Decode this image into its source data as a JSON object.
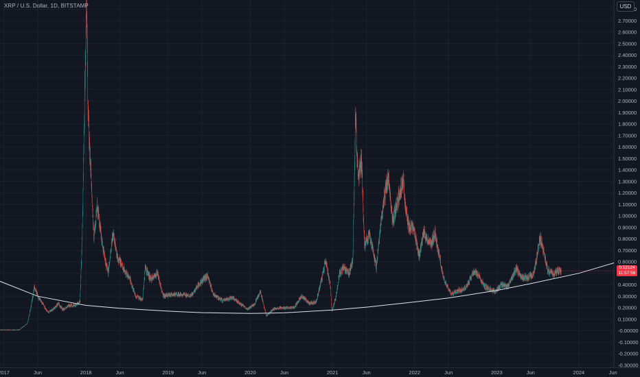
{
  "header": {
    "title": "XRP / U.S. Dollar, 1D, BITSTAMP",
    "currency": "USD"
  },
  "last_price": {
    "value": "0.52124",
    "countdown": "11:57:56"
  },
  "colors": {
    "background": "#131722",
    "up": "#26a69a",
    "down": "#ef5350",
    "trendline": "#e0e3eb",
    "last_price_badge": "#f23645"
  },
  "chart_data": {
    "type": "candlestick",
    "title": "XRP / U.S. Dollar, 1D, BITSTAMP",
    "y_axis": {
      "scale": "linear",
      "range": [
        -0.32,
        2.88
      ],
      "ticks": [
        "2.80000",
        "2.70000",
        "2.60000",
        "2.50000",
        "2.40000",
        "2.30000",
        "2.20000",
        "2.10000",
        "2.00000",
        "1.90000",
        "1.80000",
        "1.70000",
        "1.60000",
        "1.50000",
        "1.40000",
        "1.30000",
        "1.20000",
        "1.10000",
        "1.00000",
        "0.90000",
        "0.80000",
        "0.70000",
        "0.60000",
        "0.50000",
        "0.40000",
        "0.30000",
        "0.20000",
        "0.10000",
        "-0.00000",
        "-0.10000",
        "-0.20000",
        "-0.30000"
      ],
      "position": "right"
    },
    "x_axis": {
      "range": [
        "2016-12-15",
        "2024-06-05"
      ],
      "ticks": [
        {
          "label": "2017",
          "date": "2017-01-01"
        },
        {
          "label": "Jun",
          "date": "2017-06-01"
        },
        {
          "label": "2018",
          "date": "2018-01-01"
        },
        {
          "label": "Jun",
          "date": "2018-06-01"
        },
        {
          "label": "2019",
          "date": "2019-01-01"
        },
        {
          "label": "Jun",
          "date": "2019-06-01"
        },
        {
          "label": "2020",
          "date": "2020-01-01"
        },
        {
          "label": "Jun",
          "date": "2020-06-01"
        },
        {
          "label": "2021",
          "date": "2021-01-01"
        },
        {
          "label": "Jun",
          "date": "2021-06-01"
        },
        {
          "label": "2022",
          "date": "2022-01-01"
        },
        {
          "label": "Jun",
          "date": "2022-06-01"
        },
        {
          "label": "2023",
          "date": "2023-01-01"
        },
        {
          "label": "Jun",
          "date": "2023-06-01"
        },
        {
          "label": "2024",
          "date": "2024-01-01"
        },
        {
          "label": "Jun",
          "date": "2024-06-01"
        }
      ]
    },
    "grid": true,
    "price_path": [
      [
        "2016-12-15",
        0.006
      ],
      [
        "2017-03-10",
        0.007
      ],
      [
        "2017-03-25",
        0.03
      ],
      [
        "2017-04-15",
        0.06
      ],
      [
        "2017-05-01",
        0.2
      ],
      [
        "2017-05-17",
        0.38
      ],
      [
        "2017-06-05",
        0.28
      ],
      [
        "2017-06-25",
        0.23
      ],
      [
        "2017-07-15",
        0.16
      ],
      [
        "2017-08-05",
        0.18
      ],
      [
        "2017-09-01",
        0.24
      ],
      [
        "2017-09-20",
        0.18
      ],
      [
        "2017-10-15",
        0.22
      ],
      [
        "2017-11-15",
        0.22
      ],
      [
        "2017-12-05",
        0.25
      ],
      [
        "2017-12-15",
        0.8
      ],
      [
        "2017-12-28",
        2.2
      ],
      [
        "2018-01-04",
        2.88
      ],
      [
        "2018-01-10",
        1.9
      ],
      [
        "2018-01-20",
        1.5
      ],
      [
        "2018-02-05",
        0.8
      ],
      [
        "2018-02-20",
        1.1
      ],
      [
        "2018-03-15",
        0.75
      ],
      [
        "2018-04-10",
        0.5
      ],
      [
        "2018-05-01",
        0.85
      ],
      [
        "2018-05-20",
        0.65
      ],
      [
        "2018-06-15",
        0.55
      ],
      [
        "2018-07-15",
        0.45
      ],
      [
        "2018-08-10",
        0.3
      ],
      [
        "2018-09-10",
        0.27
      ],
      [
        "2018-09-21",
        0.55
      ],
      [
        "2018-10-15",
        0.45
      ],
      [
        "2018-11-15",
        0.5
      ],
      [
        "2018-12-10",
        0.3
      ],
      [
        "2019-01-15",
        0.32
      ],
      [
        "2019-03-01",
        0.31
      ],
      [
        "2019-04-15",
        0.31
      ],
      [
        "2019-05-15",
        0.4
      ],
      [
        "2019-06-25",
        0.48
      ],
      [
        "2019-07-20",
        0.32
      ],
      [
        "2019-09-01",
        0.26
      ],
      [
        "2019-10-15",
        0.29
      ],
      [
        "2019-11-20",
        0.23
      ],
      [
        "2019-12-20",
        0.19
      ],
      [
        "2020-01-20",
        0.23
      ],
      [
        "2020-02-15",
        0.34
      ],
      [
        "2020-03-13",
        0.13
      ],
      [
        "2020-04-15",
        0.19
      ],
      [
        "2020-06-01",
        0.2
      ],
      [
        "2020-07-15",
        0.2
      ],
      [
        "2020-08-15",
        0.3
      ],
      [
        "2020-09-20",
        0.24
      ],
      [
        "2020-10-20",
        0.25
      ],
      [
        "2020-11-20",
        0.5
      ],
      [
        "2020-12-01",
        0.62
      ],
      [
        "2020-12-22",
        0.4
      ],
      [
        "2020-12-29",
        0.17
      ],
      [
        "2021-01-15",
        0.28
      ],
      [
        "2021-02-01",
        0.5
      ],
      [
        "2021-02-20",
        0.55
      ],
      [
        "2021-03-15",
        0.5
      ],
      [
        "2021-04-01",
        0.6
      ],
      [
        "2021-04-13",
        1.9
      ],
      [
        "2021-04-25",
        1.3
      ],
      [
        "2021-05-10",
        1.5
      ],
      [
        "2021-05-23",
        0.75
      ],
      [
        "2021-06-15",
        0.85
      ],
      [
        "2021-07-15",
        0.55
      ],
      [
        "2021-08-10",
        1.05
      ],
      [
        "2021-09-05",
        1.35
      ],
      [
        "2021-09-25",
        0.95
      ],
      [
        "2021-10-20",
        1.15
      ],
      [
        "2021-11-10",
        1.3
      ],
      [
        "2021-12-05",
        0.9
      ],
      [
        "2021-12-25",
        0.9
      ],
      [
        "2022-01-20",
        0.65
      ],
      [
        "2022-02-10",
        0.85
      ],
      [
        "2022-03-15",
        0.75
      ],
      [
        "2022-04-01",
        0.85
      ],
      [
        "2022-05-10",
        0.45
      ],
      [
        "2022-06-15",
        0.32
      ],
      [
        "2022-07-15",
        0.35
      ],
      [
        "2022-08-15",
        0.37
      ],
      [
        "2022-09-22",
        0.52
      ],
      [
        "2022-10-20",
        0.46
      ],
      [
        "2022-11-10",
        0.38
      ],
      [
        "2022-12-25",
        0.34
      ],
      [
        "2023-01-20",
        0.4
      ],
      [
        "2023-02-20",
        0.39
      ],
      [
        "2023-03-29",
        0.54
      ],
      [
        "2023-04-20",
        0.47
      ],
      [
        "2023-05-20",
        0.46
      ],
      [
        "2023-06-15",
        0.49
      ],
      [
        "2023-07-13",
        0.82
      ],
      [
        "2023-07-25",
        0.72
      ],
      [
        "2023-08-17",
        0.52
      ],
      [
        "2023-09-10",
        0.49
      ],
      [
        "2023-10-01",
        0.52
      ],
      [
        "2023-10-15",
        0.52124
      ]
    ],
    "trendline": [
      [
        "2016-12-15",
        0.43
      ],
      [
        "2017-06-01",
        0.3
      ],
      [
        "2018-01-01",
        0.22
      ],
      [
        "2018-06-01",
        0.195
      ],
      [
        "2019-01-01",
        0.17
      ],
      [
        "2019-06-01",
        0.157
      ],
      [
        "2020-01-01",
        0.15
      ],
      [
        "2020-06-01",
        0.155
      ],
      [
        "2021-01-01",
        0.18
      ],
      [
        "2021-06-01",
        0.205
      ],
      [
        "2022-01-01",
        0.25
      ],
      [
        "2022-06-01",
        0.285
      ],
      [
        "2023-01-01",
        0.35
      ],
      [
        "2023-06-01",
        0.41
      ],
      [
        "2024-01-01",
        0.5
      ],
      [
        "2024-06-05",
        0.59
      ]
    ]
  }
}
